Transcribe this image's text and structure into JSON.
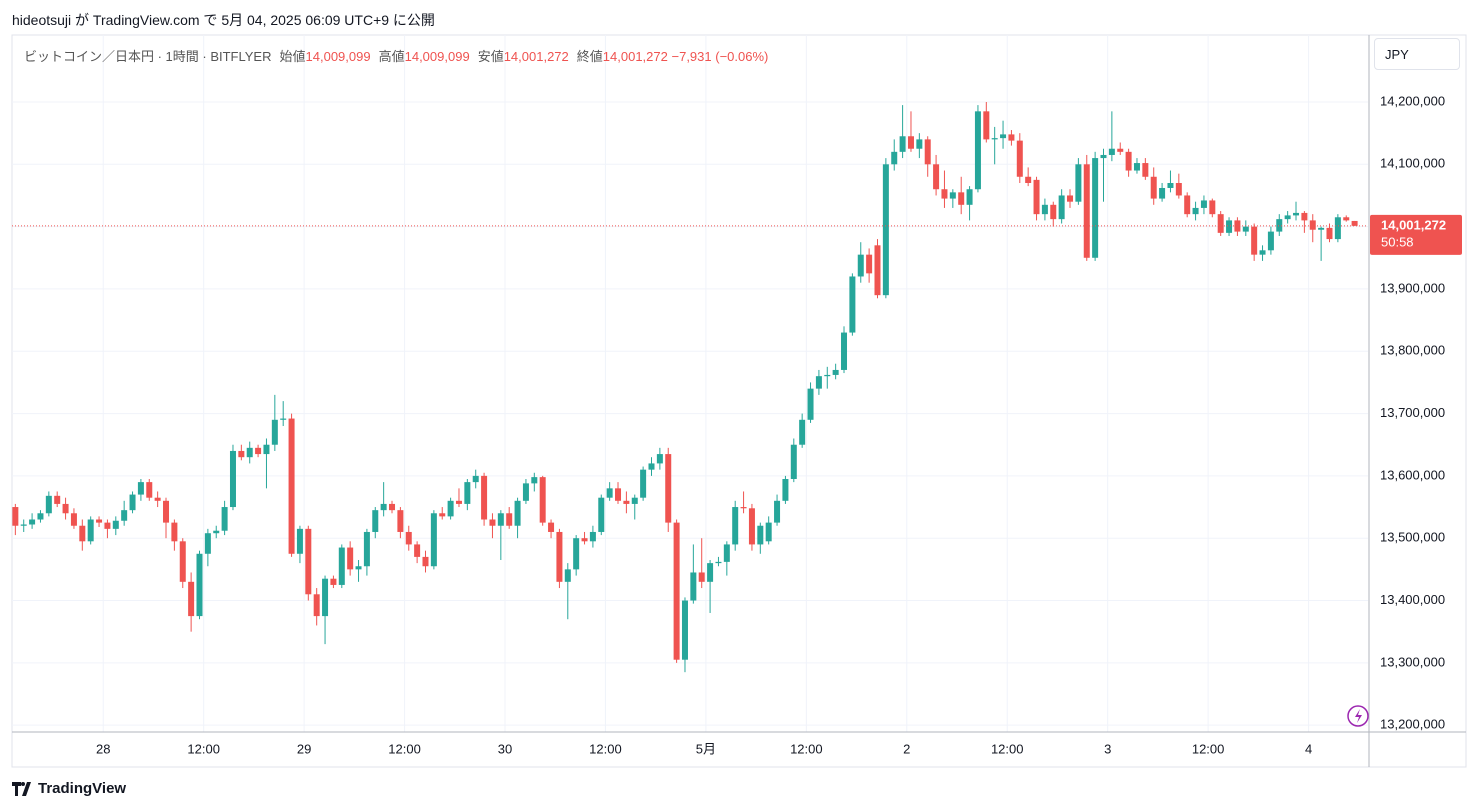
{
  "header": {
    "text": "hideotsuji が TradingView.com で 5月 04, 2025 06:09 UTC+9 に公開"
  },
  "chart_data": {
    "type": "candlestick",
    "symbol": "ビットコイン／日本円 · 1時間 · BITFLYER",
    "ohlc_legend": [
      {
        "label": "始値",
        "value": "14,009,099"
      },
      {
        "label": "高値",
        "value": "14,009,099"
      },
      {
        "label": "安値",
        "value": "14,001,272"
      },
      {
        "label": "終値",
        "value": "14,001,272"
      }
    ],
    "change": "−7,931 (−0.06%)",
    "currency": "JPY",
    "last_price": {
      "value": 14001272,
      "label": "14,001,272"
    },
    "countdown": "50:58",
    "up_color": "#26a69a",
    "down_color": "#ef5350",
    "ylim": [
      13189000,
      14307500
    ],
    "yticks": [
      {
        "value": 13200000,
        "label": "13,200,000"
      },
      {
        "value": 13300000,
        "label": "13,300,000"
      },
      {
        "value": 13400000,
        "label": "13,400,000"
      },
      {
        "value": 13500000,
        "label": "13,500,000"
      },
      {
        "value": 13600000,
        "label": "13,600,000"
      },
      {
        "value": 13700000,
        "label": "13,700,000"
      },
      {
        "value": 13800000,
        "label": "13,800,000"
      },
      {
        "value": 13900000,
        "label": "13,900,000"
      },
      {
        "value": 14000000,
        "label": "14,000,000"
      },
      {
        "value": 14100000,
        "label": "14,100,000"
      },
      {
        "value": 14200000,
        "label": "14,200,000"
      }
    ],
    "xlim": [
      -0.4,
      161.6
    ],
    "xticks": [
      {
        "value": 10.5,
        "label": "28"
      },
      {
        "value": 22.5,
        "label": "12:00"
      },
      {
        "value": 34.5,
        "label": "29"
      },
      {
        "value": 46.5,
        "label": "12:00"
      },
      {
        "value": 58.5,
        "label": "30"
      },
      {
        "value": 70.5,
        "label": "12:00"
      },
      {
        "value": 82.5,
        "label": "5月"
      },
      {
        "value": 94.5,
        "label": "12:00"
      },
      {
        "value": 106.5,
        "label": "2"
      },
      {
        "value": 118.5,
        "label": "12:00"
      },
      {
        "value": 130.5,
        "label": "3"
      },
      {
        "value": 142.5,
        "label": "12:00"
      },
      {
        "value": 154.5,
        "label": "4"
      }
    ],
    "candles": [
      [
        13550000,
        13555000,
        13505000,
        13520000
      ],
      [
        13520000,
        13530000,
        13510000,
        13522000
      ],
      [
        13522000,
        13540000,
        13515000,
        13530000
      ],
      [
        13530000,
        13545000,
        13525000,
        13540000
      ],
      [
        13540000,
        13575000,
        13535000,
        13568000
      ],
      [
        13568000,
        13575000,
        13550000,
        13555000
      ],
      [
        13555000,
        13565000,
        13530000,
        13540000
      ],
      [
        13540000,
        13548000,
        13515000,
        13520000
      ],
      [
        13520000,
        13530000,
        13480000,
        13495000
      ],
      [
        13495000,
        13535000,
        13490000,
        13530000
      ],
      [
        13530000,
        13535000,
        13518000,
        13525000
      ],
      [
        13525000,
        13530000,
        13500000,
        13515000
      ],
      [
        13515000,
        13535000,
        13505000,
        13528000
      ],
      [
        13528000,
        13560000,
        13520000,
        13545000
      ],
      [
        13545000,
        13575000,
        13540000,
        13570000
      ],
      [
        13570000,
        13595000,
        13560000,
        13590000
      ],
      [
        13590000,
        13595000,
        13560000,
        13565000
      ],
      [
        13565000,
        13575000,
        13550000,
        13560000
      ],
      [
        13560000,
        13565000,
        13500000,
        13525000
      ],
      [
        13525000,
        13530000,
        13480000,
        13495000
      ],
      [
        13495000,
        13500000,
        13420000,
        13430000
      ],
      [
        13430000,
        13445000,
        13350000,
        13375000
      ],
      [
        13375000,
        13480000,
        13370000,
        13475000
      ],
      [
        13475000,
        13515000,
        13455000,
        13508000
      ],
      [
        13508000,
        13520000,
        13500000,
        13512000
      ],
      [
        13512000,
        13560000,
        13505000,
        13550000
      ],
      [
        13550000,
        13650000,
        13545000,
        13640000
      ],
      [
        13640000,
        13650000,
        13625000,
        13630000
      ],
      [
        13630000,
        13655000,
        13620000,
        13645000
      ],
      [
        13645000,
        13650000,
        13630000,
        13635000
      ],
      [
        13635000,
        13660000,
        13580000,
        13650000
      ],
      [
        13650000,
        13730000,
        13640000,
        13690000
      ],
      [
        13690000,
        13720000,
        13680000,
        13692000
      ],
      [
        13692000,
        13700000,
        13470000,
        13475000
      ],
      [
        13475000,
        13520000,
        13460000,
        13515000
      ],
      [
        13515000,
        13520000,
        13400000,
        13410000
      ],
      [
        13410000,
        13420000,
        13360000,
        13375000
      ],
      [
        13375000,
        13440000,
        13330000,
        13435000
      ],
      [
        13435000,
        13440000,
        13420000,
        13425000
      ],
      [
        13425000,
        13490000,
        13420000,
        13485000
      ],
      [
        13485000,
        13495000,
        13440000,
        13450000
      ],
      [
        13450000,
        13465000,
        13430000,
        13455000
      ],
      [
        13455000,
        13515000,
        13440000,
        13510000
      ],
      [
        13510000,
        13550000,
        13500000,
        13545000
      ],
      [
        13545000,
        13590000,
        13535000,
        13555000
      ],
      [
        13555000,
        13560000,
        13540000,
        13545000
      ],
      [
        13545000,
        13550000,
        13500000,
        13510000
      ],
      [
        13510000,
        13520000,
        13480000,
        13490000
      ],
      [
        13490000,
        13495000,
        13460000,
        13470000
      ],
      [
        13470000,
        13480000,
        13445000,
        13455000
      ],
      [
        13455000,
        13545000,
        13450000,
        13540000
      ],
      [
        13540000,
        13550000,
        13530000,
        13535000
      ],
      [
        13535000,
        13565000,
        13530000,
        13560000
      ],
      [
        13560000,
        13580000,
        13550000,
        13555000
      ],
      [
        13555000,
        13595000,
        13545000,
        13590000
      ],
      [
        13590000,
        13610000,
        13580000,
        13600000
      ],
      [
        13600000,
        13605000,
        13520000,
        13530000
      ],
      [
        13530000,
        13540000,
        13500000,
        13520000
      ],
      [
        13520000,
        13545000,
        13465000,
        13540000
      ],
      [
        13540000,
        13550000,
        13515000,
        13520000
      ],
      [
        13520000,
        13565000,
        13500000,
        13560000
      ],
      [
        13560000,
        13595000,
        13555000,
        13588000
      ],
      [
        13588000,
        13605000,
        13575000,
        13598000
      ],
      [
        13598000,
        13600000,
        13520000,
        13525000
      ],
      [
        13525000,
        13530000,
        13500000,
        13510000
      ],
      [
        13510000,
        13515000,
        13420000,
        13430000
      ],
      [
        13430000,
        13460000,
        13370000,
        13450000
      ],
      [
        13450000,
        13505000,
        13440000,
        13500000
      ],
      [
        13500000,
        13510000,
        13490000,
        13495000
      ],
      [
        13495000,
        13520000,
        13485000,
        13510000
      ],
      [
        13510000,
        13570000,
        13505000,
        13565000
      ],
      [
        13565000,
        13590000,
        13560000,
        13580000
      ],
      [
        13580000,
        13590000,
        13555000,
        13560000
      ],
      [
        13560000,
        13575000,
        13540000,
        13555000
      ],
      [
        13555000,
        13570000,
        13530000,
        13565000
      ],
      [
        13565000,
        13615000,
        13560000,
        13610000
      ],
      [
        13610000,
        13630000,
        13600000,
        13620000
      ],
      [
        13620000,
        13645000,
        13610000,
        13635000
      ],
      [
        13635000,
        13645000,
        13510000,
        13525000
      ],
      [
        13525000,
        13530000,
        13300000,
        13305000
      ],
      [
        13305000,
        13405000,
        13285000,
        13400000
      ],
      [
        13400000,
        13490000,
        13395000,
        13445000
      ],
      [
        13445000,
        13500000,
        13420000,
        13430000
      ],
      [
        13430000,
        13465000,
        13380000,
        13460000
      ],
      [
        13460000,
        13470000,
        13455000,
        13462000
      ],
      [
        13462000,
        13495000,
        13440000,
        13490000
      ],
      [
        13490000,
        13560000,
        13480000,
        13550000
      ],
      [
        13550000,
        13575000,
        13540000,
        13548000
      ],
      [
        13548000,
        13555000,
        13480000,
        13490000
      ],
      [
        13490000,
        13525000,
        13475000,
        13520000
      ],
      [
        13495000,
        13535000,
        13490000,
        13525000
      ],
      [
        13525000,
        13570000,
        13520000,
        13560000
      ],
      [
        13560000,
        13600000,
        13555000,
        13595000
      ],
      [
        13595000,
        13660000,
        13590000,
        13650000
      ],
      [
        13650000,
        13700000,
        13645000,
        13690000
      ],
      [
        13690000,
        13750000,
        13685000,
        13740000
      ],
      [
        13740000,
        13770000,
        13730000,
        13760000
      ],
      [
        13760000,
        13775000,
        13740000,
        13762000
      ],
      [
        13762000,
        13780000,
        13755000,
        13770000
      ],
      [
        13770000,
        13840000,
        13765000,
        13830000
      ],
      [
        13830000,
        13925000,
        13825000,
        13920000
      ],
      [
        13920000,
        13975000,
        13910000,
        13955000
      ],
      [
        13955000,
        13965000,
        13910000,
        13925000
      ],
      [
        13970000,
        13980000,
        13885000,
        13890000
      ],
      [
        13890000,
        14110000,
        13885000,
        14100000
      ],
      [
        14100000,
        14140000,
        14090000,
        14120000
      ],
      [
        14120000,
        14195000,
        14110000,
        14145000
      ],
      [
        14145000,
        14185000,
        14120000,
        14125000
      ],
      [
        14125000,
        14150000,
        14110000,
        14140000
      ],
      [
        14140000,
        14145000,
        14080000,
        14100000
      ],
      [
        14100000,
        14115000,
        14050000,
        14060000
      ],
      [
        14060000,
        14090000,
        14030000,
        14045000
      ],
      [
        14045000,
        14060000,
        14030000,
        14055000
      ],
      [
        14055000,
        14080000,
        14020000,
        14035000
      ],
      [
        14035000,
        14065000,
        14010000,
        14060000
      ],
      [
        14060000,
        14195000,
        14055000,
        14185000
      ],
      [
        14185000,
        14200000,
        14135000,
        14140000
      ],
      [
        14140000,
        14160000,
        14100000,
        14142000
      ],
      [
        14142000,
        14170000,
        14125000,
        14148000
      ],
      [
        14148000,
        14155000,
        14130000,
        14138000
      ],
      [
        14138000,
        14150000,
        14070000,
        14080000
      ],
      [
        14080000,
        14095000,
        14065000,
        14070000
      ],
      [
        14075000,
        14080000,
        14010000,
        14020000
      ],
      [
        14020000,
        14045000,
        14010000,
        14035000
      ],
      [
        14035000,
        14040000,
        14000000,
        14012000
      ],
      [
        14012000,
        14060000,
        14005000,
        14050000
      ],
      [
        14050000,
        14060000,
        14030000,
        14040000
      ],
      [
        14040000,
        14110000,
        14035000,
        14100000
      ],
      [
        14100000,
        14115000,
        13945000,
        13950000
      ],
      [
        13950000,
        14120000,
        13945000,
        14110000
      ],
      [
        14110000,
        14125000,
        14040000,
        14115000
      ],
      [
        14115000,
        14185000,
        14105000,
        14125000
      ],
      [
        14125000,
        14135000,
        14115000,
        14120000
      ],
      [
        14120000,
        14125000,
        14080000,
        14090000
      ],
      [
        14090000,
        14110000,
        14085000,
        14102000
      ],
      [
        14102000,
        14110000,
        14075000,
        14080000
      ],
      [
        14080000,
        14095000,
        14035000,
        14045000
      ],
      [
        14045000,
        14070000,
        14040000,
        14062000
      ],
      [
        14062000,
        14090000,
        14055000,
        14070000
      ],
      [
        14070000,
        14085000,
        14045000,
        14050000
      ],
      [
        14050000,
        14055000,
        14015000,
        14020000
      ],
      [
        14020000,
        14040000,
        14010000,
        14030000
      ],
      [
        14030000,
        14050000,
        14020000,
        14042000
      ],
      [
        14042000,
        14045000,
        14015000,
        14020000
      ],
      [
        14020000,
        14025000,
        13985000,
        13990000
      ],
      [
        13990000,
        14015000,
        13985000,
        14010000
      ],
      [
        14010000,
        14015000,
        13985000,
        13992000
      ],
      [
        13992000,
        14010000,
        13985000,
        14000000
      ],
      [
        14000000,
        14005000,
        13945000,
        13955000
      ],
      [
        13955000,
        13970000,
        13945000,
        13962000
      ],
      [
        13962000,
        14000000,
        13955000,
        13992000
      ],
      [
        13992000,
        14020000,
        13985000,
        14012000
      ],
      [
        14012000,
        14025000,
        14005000,
        14018000
      ],
      [
        14018000,
        14040000,
        14010000,
        14022000
      ],
      [
        14022000,
        14025000,
        13990000,
        14010000
      ],
      [
        14010000,
        14020000,
        13975000,
        13995000
      ],
      [
        13995000,
        14000000,
        13945000,
        13998000
      ],
      [
        13998000,
        14005000,
        13975000,
        13980000
      ],
      [
        13980000,
        14020000,
        13975000,
        14015000
      ],
      [
        14015000,
        14018000,
        14008000,
        14010000
      ],
      [
        14009099,
        14009099,
        14001272,
        14001272
      ]
    ]
  },
  "footer": {
    "logo": "TradingView"
  }
}
